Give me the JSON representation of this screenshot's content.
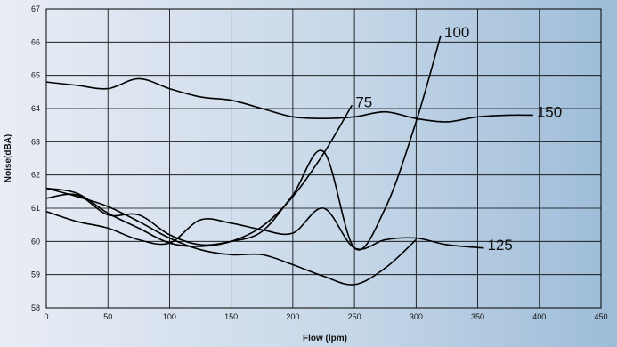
{
  "chart_data": {
    "type": "line",
    "xlabel": "Flow (lpm)",
    "ylabel": "Noise(dBA)",
    "xlim": [
      0,
      450
    ],
    "ylim": [
      58,
      67
    ],
    "xticks": [
      0,
      50,
      100,
      150,
      200,
      250,
      300,
      350,
      400,
      450
    ],
    "yticks": [
      58,
      59,
      60,
      61,
      62,
      63,
      64,
      65,
      66,
      67
    ],
    "grid": true,
    "legend": "inline labels at line ends",
    "colors": {
      "background_left": "#e9edf5",
      "background_right": "#9dbcd8",
      "grid": "#000000",
      "line": "#000000"
    },
    "series": [
      {
        "name": "150",
        "x": [
          0,
          25,
          50,
          75,
          100,
          125,
          150,
          175,
          200,
          225,
          250,
          275,
          300,
          325,
          350,
          375,
          395
        ],
        "y": [
          64.8,
          64.7,
          64.6,
          64.9,
          64.6,
          64.35,
          64.25,
          64.0,
          63.75,
          63.7,
          63.75,
          63.9,
          63.7,
          63.6,
          63.75,
          63.8,
          63.8
        ]
      },
      {
        "name": "75",
        "x": [
          0,
          25,
          50,
          75,
          100,
          125,
          150,
          175,
          200,
          225,
          248
        ],
        "y": [
          61.6,
          61.45,
          60.85,
          60.4,
          59.95,
          59.85,
          60.0,
          60.45,
          61.35,
          62.65,
          64.1
        ]
      },
      {
        "name": "100",
        "x": [
          0,
          25,
          50,
          75,
          100,
          125,
          150,
          175,
          200,
          225,
          250,
          275,
          300,
          320
        ],
        "y": [
          61.3,
          61.4,
          60.8,
          60.8,
          60.2,
          59.9,
          60.0,
          60.3,
          61.4,
          62.7,
          59.8,
          61.0,
          63.6,
          66.2
        ]
      },
      {
        "name": "125",
        "x": [
          0,
          25,
          50,
          75,
          100,
          125,
          150,
          175,
          200,
          225,
          250,
          275,
          300,
          325,
          355
        ],
        "y": [
          60.9,
          60.6,
          60.4,
          60.05,
          59.95,
          60.65,
          60.55,
          60.35,
          60.25,
          61.0,
          59.8,
          60.05,
          60.1,
          59.9,
          59.8
        ]
      },
      {
        "name": "",
        "x": [
          0,
          25,
          50,
          75,
          100,
          125,
          150,
          175,
          200,
          225,
          250,
          275,
          300
        ],
        "y": [
          61.6,
          61.35,
          61.05,
          60.6,
          60.1,
          59.75,
          59.6,
          59.6,
          59.3,
          58.95,
          58.7,
          59.2,
          60.05
        ]
      }
    ]
  }
}
